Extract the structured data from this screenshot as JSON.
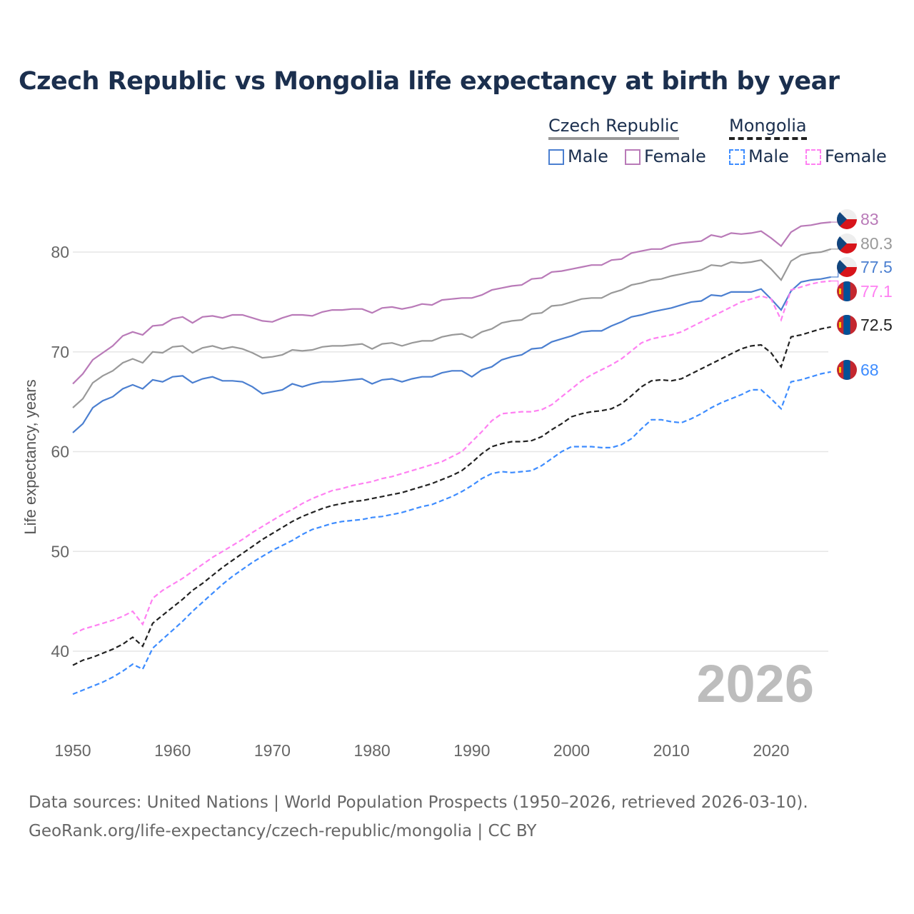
{
  "title": "Czech Republic vs Mongolia life expectancy at birth by year",
  "legend": {
    "groups": [
      {
        "name": "Czech Republic",
        "items": [
          "Male",
          "Female"
        ]
      },
      {
        "name": "Mongolia",
        "items": [
          "Male",
          "Female"
        ]
      }
    ]
  },
  "year_label": "2026",
  "source_lines": [
    "Data sources: United Nations | World Population Prospects (1950–2026, retrieved 2026-03-10).",
    "GeoRank.org/life-expectancy/czech-republic/mongolia | CC BY"
  ],
  "chart_data": {
    "type": "line",
    "title": "Czech Republic vs Mongolia life expectancy at birth by year",
    "xlabel": "",
    "ylabel": "Life expectancy, years",
    "xlim": [
      1950,
      2026
    ],
    "ylim": [
      33,
      86
    ],
    "xticks": [
      1950,
      1960,
      1970,
      1980,
      1990,
      2000,
      2010,
      2020
    ],
    "yticks": [
      40,
      50,
      60,
      70,
      80
    ],
    "grid": true,
    "legend_position": "top-right",
    "x_start": 1950,
    "series": [
      {
        "name": "Czech Republic Female",
        "country": "cz",
        "color": "#b97ab8",
        "dashed": false,
        "end_label": "83",
        "values": [
          66.8,
          67.8,
          69.2,
          69.9,
          70.6,
          71.6,
          72.0,
          71.7,
          72.6,
          72.7,
          73.3,
          73.5,
          72.9,
          73.5,
          73.6,
          73.4,
          73.7,
          73.7,
          73.4,
          73.1,
          73.0,
          73.4,
          73.7,
          73.7,
          73.6,
          74.0,
          74.2,
          74.2,
          74.3,
          74.3,
          73.9,
          74.4,
          74.5,
          74.3,
          74.5,
          74.8,
          74.7,
          75.2,
          75.3,
          75.4,
          75.4,
          75.7,
          76.2,
          76.4,
          76.6,
          76.7,
          77.3,
          77.4,
          78.0,
          78.1,
          78.3,
          78.5,
          78.7,
          78.7,
          79.2,
          79.3,
          79.9,
          80.1,
          80.3,
          80.3,
          80.7,
          80.9,
          81.0,
          81.1,
          81.7,
          81.5,
          81.9,
          81.8,
          81.9,
          82.1,
          81.4,
          80.6,
          82.0,
          82.6,
          82.7,
          82.9,
          83.0
        ]
      },
      {
        "name": "Czech Republic Total",
        "country": "cz",
        "color": "#999999",
        "dashed": false,
        "end_label": "80.3",
        "values": [
          64.4,
          65.3,
          66.9,
          67.6,
          68.1,
          68.9,
          69.3,
          68.9,
          70.0,
          69.9,
          70.5,
          70.6,
          69.9,
          70.4,
          70.6,
          70.3,
          70.5,
          70.3,
          69.9,
          69.4,
          69.5,
          69.7,
          70.2,
          70.1,
          70.2,
          70.5,
          70.6,
          70.6,
          70.7,
          70.8,
          70.3,
          70.8,
          70.9,
          70.6,
          70.9,
          71.1,
          71.1,
          71.5,
          71.7,
          71.8,
          71.4,
          72.0,
          72.3,
          72.9,
          73.1,
          73.2,
          73.8,
          73.9,
          74.6,
          74.7,
          75.0,
          75.3,
          75.4,
          75.4,
          75.9,
          76.2,
          76.7,
          76.9,
          77.2,
          77.3,
          77.6,
          77.8,
          78.0,
          78.2,
          78.7,
          78.6,
          79.0,
          78.9,
          79.0,
          79.2,
          78.3,
          77.2,
          79.1,
          79.7,
          79.9,
          80.0,
          80.3
        ]
      },
      {
        "name": "Czech Republic Male",
        "country": "cz",
        "color": "#4b7fd0",
        "dashed": false,
        "end_label": "77.5",
        "values": [
          61.9,
          62.8,
          64.4,
          65.1,
          65.5,
          66.3,
          66.7,
          66.3,
          67.2,
          67.0,
          67.5,
          67.6,
          66.9,
          67.3,
          67.5,
          67.1,
          67.1,
          67.0,
          66.5,
          65.8,
          66.0,
          66.2,
          66.8,
          66.5,
          66.8,
          67.0,
          67.0,
          67.1,
          67.2,
          67.3,
          66.8,
          67.2,
          67.3,
          67.0,
          67.3,
          67.5,
          67.5,
          67.9,
          68.1,
          68.1,
          67.5,
          68.2,
          68.5,
          69.2,
          69.5,
          69.7,
          70.3,
          70.4,
          71.0,
          71.3,
          71.6,
          72.0,
          72.1,
          72.1,
          72.6,
          73.0,
          73.5,
          73.7,
          74.0,
          74.2,
          74.4,
          74.7,
          75.0,
          75.1,
          75.7,
          75.6,
          76.0,
          76.0,
          76.0,
          76.3,
          75.3,
          74.2,
          76.1,
          77.0,
          77.2,
          77.3,
          77.5
        ]
      },
      {
        "name": "Mongolia Female",
        "country": "mn",
        "color": "#ff80f2",
        "dashed": true,
        "end_label": "77.1",
        "values": [
          41.7,
          42.2,
          42.5,
          42.8,
          43.1,
          43.5,
          44.0,
          42.7,
          45.3,
          46.1,
          46.7,
          47.3,
          48.0,
          48.7,
          49.4,
          50.0,
          50.6,
          51.2,
          51.9,
          52.5,
          53.1,
          53.7,
          54.2,
          54.8,
          55.3,
          55.7,
          56.1,
          56.3,
          56.6,
          56.8,
          57.0,
          57.3,
          57.5,
          57.8,
          58.1,
          58.4,
          58.7,
          59.0,
          59.5,
          60.0,
          61.0,
          62.0,
          63.1,
          63.8,
          63.9,
          64.0,
          64.0,
          64.2,
          64.7,
          65.5,
          66.3,
          67.1,
          67.7,
          68.2,
          68.7,
          69.3,
          70.1,
          70.9,
          71.3,
          71.5,
          71.7,
          72.0,
          72.5,
          73.0,
          73.5,
          74.0,
          74.5,
          75.0,
          75.3,
          75.6,
          75.3,
          73.2,
          76.2,
          76.5,
          76.8,
          77.0,
          77.1
        ]
      },
      {
        "name": "Mongolia Total",
        "country": "mn",
        "color": "#222222",
        "dashed": true,
        "end_label": "72.5",
        "values": [
          38.6,
          39.1,
          39.4,
          39.8,
          40.2,
          40.7,
          41.4,
          40.5,
          42.8,
          43.6,
          44.4,
          45.2,
          46.1,
          46.8,
          47.6,
          48.4,
          49.1,
          49.8,
          50.5,
          51.2,
          51.8,
          52.4,
          53.0,
          53.5,
          53.9,
          54.3,
          54.6,
          54.8,
          55.0,
          55.1,
          55.3,
          55.5,
          55.7,
          55.9,
          56.2,
          56.5,
          56.8,
          57.2,
          57.6,
          58.1,
          58.9,
          59.8,
          60.5,
          60.8,
          61.0,
          61.0,
          61.1,
          61.5,
          62.2,
          62.8,
          63.5,
          63.8,
          64.0,
          64.1,
          64.3,
          64.8,
          65.6,
          66.5,
          67.1,
          67.2,
          67.1,
          67.3,
          67.8,
          68.3,
          68.8,
          69.3,
          69.8,
          70.3,
          70.6,
          70.7,
          69.9,
          68.5,
          71.5,
          71.7,
          72.0,
          72.3,
          72.5
        ]
      },
      {
        "name": "Mongolia Male",
        "country": "mn",
        "color": "#3d8cff",
        "dashed": true,
        "end_label": "68",
        "values": [
          35.7,
          36.1,
          36.5,
          36.9,
          37.4,
          38.0,
          38.7,
          38.2,
          40.3,
          41.2,
          42.1,
          43.0,
          44.0,
          44.9,
          45.8,
          46.7,
          47.5,
          48.2,
          48.9,
          49.5,
          50.1,
          50.6,
          51.1,
          51.7,
          52.2,
          52.5,
          52.8,
          53.0,
          53.1,
          53.2,
          53.4,
          53.5,
          53.7,
          53.9,
          54.2,
          54.5,
          54.7,
          55.1,
          55.5,
          56.0,
          56.6,
          57.3,
          57.8,
          58.0,
          57.9,
          58.0,
          58.1,
          58.6,
          59.3,
          60.0,
          60.5,
          60.5,
          60.5,
          60.4,
          60.4,
          60.7,
          61.3,
          62.3,
          63.2,
          63.2,
          63.0,
          62.9,
          63.3,
          63.8,
          64.4,
          64.9,
          65.3,
          65.7,
          66.2,
          66.2,
          65.3,
          64.3,
          67.0,
          67.2,
          67.5,
          67.8,
          68.0
        ]
      }
    ]
  }
}
